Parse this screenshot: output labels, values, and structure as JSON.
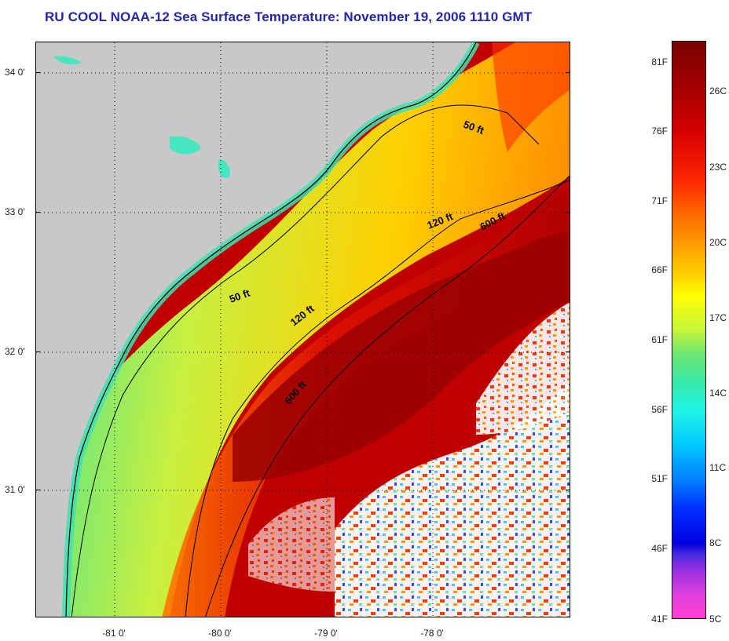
{
  "title": "RU COOL  NOAA-12  Sea Surface Temperature:  November 19, 2006 1110 GMT",
  "map": {
    "latitude_labels": [
      "34 0'",
      "33 0'",
      "32 0'",
      "31 0'"
    ],
    "longitude_labels": [
      "-81 0'",
      "-80 0'",
      "-79 0'",
      "-78 0'"
    ],
    "contours": [
      {
        "label": "50 ft"
      },
      {
        "label": "120 ft"
      },
      {
        "label": "600 ft"
      },
      {
        "label": "50 ft"
      },
      {
        "label": "120 ft"
      },
      {
        "label": "600 ft"
      }
    ],
    "colors": {
      "land": "#c8c8c8",
      "coastal_cool": "#33e0a0",
      "shelf_warm": "#ffd000",
      "gulf_stream": "#b00000",
      "cloud": "#ffffff"
    }
  },
  "colorbar": {
    "fahrenheit_labels": [
      "81F",
      "76F",
      "71F",
      "66F",
      "61F",
      "56F",
      "51F",
      "46F",
      "41F"
    ],
    "celsius_labels": [
      "26C",
      "23C",
      "20C",
      "17C",
      "14C",
      "11C",
      "8C",
      "5C"
    ]
  }
}
